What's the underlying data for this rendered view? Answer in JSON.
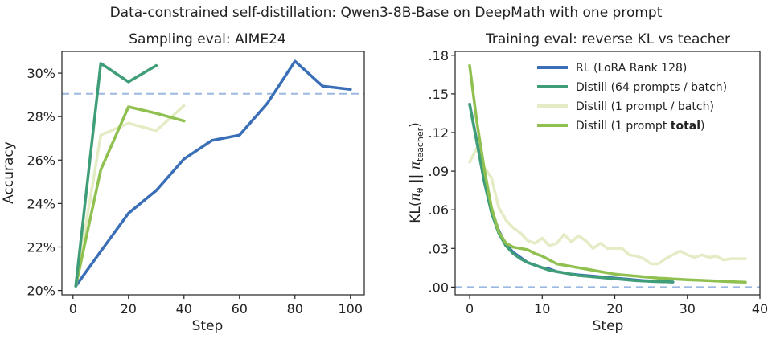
{
  "suptitle": "Data-constrained self-distillation: Qwen3-8B-Base on DeepMath with one prompt",
  "colors": {
    "rl": "#3a6fb8",
    "distill64": "#3f9e78",
    "distill1batch": "#e3ecc4",
    "distill1total": "#8fc050",
    "reference": "#9bb8e0",
    "axis": "#222222"
  },
  "chart_data": [
    {
      "type": "line",
      "title": "Sampling eval: AIME24",
      "xlabel": "Step",
      "ylabel": "Accuracy",
      "xlim": [
        -4,
        105
      ],
      "ylim": [
        19.8,
        31.0
      ],
      "xticks": [
        0,
        20,
        40,
        60,
        80,
        100
      ],
      "xtick_labels": [
        "0",
        "20",
        "40",
        "60",
        "80",
        "100"
      ],
      "yticks": [
        20,
        22,
        24,
        26,
        28,
        30
      ],
      "ytick_labels": [
        "20%",
        "22%",
        "24%",
        "26%",
        "28%",
        "30%"
      ],
      "reference_line": 29.05,
      "legend": "none",
      "grid": false,
      "series": [
        {
          "key": "rl",
          "x": [
            1,
            10,
            20,
            30,
            40,
            50,
            60,
            70,
            80,
            90,
            100
          ],
          "y": [
            20.2,
            21.8,
            23.55,
            24.6,
            26.05,
            26.9,
            27.15,
            28.6,
            30.55,
            29.4,
            29.25
          ]
        },
        {
          "key": "distill1batch",
          "x": [
            1,
            10,
            20,
            30,
            40
          ],
          "y": [
            20.2,
            27.15,
            27.7,
            27.35,
            28.5
          ]
        },
        {
          "key": "distill1total",
          "x": [
            1,
            10,
            20,
            30,
            40
          ],
          "y": [
            20.2,
            25.55,
            28.45,
            28.15,
            27.8
          ]
        },
        {
          "key": "distill64",
          "x": [
            1,
            10,
            20,
            30
          ],
          "y": [
            20.2,
            30.45,
            29.6,
            30.35
          ]
        }
      ]
    },
    {
      "type": "line",
      "title": "Training eval: reverse KL vs teacher",
      "xlabel": "Step",
      "ylabel": "KL(πθ || πteacher)",
      "xlim": [
        -2,
        40
      ],
      "ylim": [
        -0.006,
        0.183
      ],
      "xticks": [
        0,
        10,
        20,
        30,
        40
      ],
      "xtick_labels": [
        "0",
        "10",
        "20",
        "30",
        "40"
      ],
      "yticks": [
        0,
        0.03,
        0.06,
        0.09,
        0.12,
        0.15,
        0.18
      ],
      "ytick_labels": [
        ".00",
        ".03",
        ".06",
        ".09",
        ".12",
        ".15",
        ".18"
      ],
      "reference_line": 0.0,
      "legend": "top-right",
      "grid": false,
      "series": [
        {
          "key": "distill1batch",
          "name": "Distill (1 prompt / batch)",
          "x": [
            0,
            1,
            2,
            3,
            4,
            5,
            6,
            7,
            8,
            9,
            10,
            11,
            12,
            13,
            14,
            15,
            16,
            17,
            18,
            19,
            20,
            21,
            22,
            23,
            24,
            25,
            26,
            27,
            28,
            29,
            30,
            31,
            32,
            33,
            34,
            35,
            36,
            37,
            38
          ],
          "y": [
            0.097,
            0.108,
            0.093,
            0.085,
            0.062,
            0.052,
            0.046,
            0.042,
            0.036,
            0.034,
            0.038,
            0.032,
            0.034,
            0.041,
            0.035,
            0.04,
            0.036,
            0.03,
            0.034,
            0.03,
            0.03,
            0.03,
            0.025,
            0.024,
            0.022,
            0.018,
            0.018,
            0.022,
            0.025,
            0.028,
            0.025,
            0.023,
            0.025,
            0.023,
            0.024,
            0.021,
            0.022,
            0.022,
            0.022
          ]
        },
        {
          "key": "rl",
          "name": "RL (LoRA Rank 128)",
          "x": [
            0,
            1,
            2,
            3,
            4,
            5,
            6,
            7,
            8,
            9,
            10,
            11,
            12,
            13,
            14,
            15,
            16,
            17,
            18,
            19,
            20,
            21,
            22,
            23,
            24,
            25,
            26,
            27,
            28
          ],
          "y": [
            0.142,
            0.113,
            0.085,
            0.06,
            0.044,
            0.033,
            0.027,
            0.023,
            0.019,
            0.017,
            0.015,
            0.014,
            0.012,
            0.011,
            0.01,
            0.0095,
            0.009,
            0.0085,
            0.008,
            0.0075,
            0.007,
            0.0065,
            0.006,
            0.0055,
            0.005,
            0.0047,
            0.0045,
            0.0042,
            0.004
          ]
        },
        {
          "key": "distill64",
          "name": "Distill (64 prompts / batch)",
          "x": [
            0,
            1,
            2,
            3,
            4,
            5,
            6,
            7,
            8,
            9,
            10,
            11,
            12,
            13,
            14,
            15,
            16,
            17,
            18,
            19,
            20,
            21,
            22,
            23,
            24,
            25,
            26,
            27,
            28
          ],
          "y": [
            0.142,
            0.112,
            0.082,
            0.058,
            0.042,
            0.032,
            0.026,
            0.022,
            0.019,
            0.017,
            0.015,
            0.013,
            0.012,
            0.011,
            0.01,
            0.009,
            0.0085,
            0.008,
            0.0075,
            0.007,
            0.0065,
            0.006,
            0.0055,
            0.005,
            0.0047,
            0.0044,
            0.0042,
            0.0041,
            0.004
          ]
        },
        {
          "key": "distill1total",
          "name": "Distill (1 prompt total)",
          "x": [
            0,
            1,
            2,
            3,
            4,
            5,
            6,
            7,
            8,
            9,
            10,
            11,
            12,
            13,
            14,
            15,
            16,
            17,
            18,
            19,
            20,
            21,
            22,
            23,
            24,
            25,
            26,
            27,
            28,
            29,
            30,
            31,
            32,
            33,
            34,
            35,
            36,
            37,
            38
          ],
          "y": [
            0.172,
            0.128,
            0.092,
            0.062,
            0.043,
            0.034,
            0.031,
            0.03,
            0.029,
            0.026,
            0.024,
            0.021,
            0.018,
            0.017,
            0.016,
            0.015,
            0.014,
            0.013,
            0.012,
            0.011,
            0.01,
            0.0095,
            0.009,
            0.0085,
            0.008,
            0.0075,
            0.007,
            0.0067,
            0.0063,
            0.006,
            0.0057,
            0.0055,
            0.0052,
            0.005,
            0.0047,
            0.0045,
            0.0042,
            0.004,
            0.0038
          ]
        }
      ],
      "legend_entries": [
        {
          "key": "rl",
          "parts": [
            {
              "text": "RL (LoRA Rank 128)",
              "bold": false
            }
          ]
        },
        {
          "key": "distill64",
          "parts": [
            {
              "text": "Distill (64 prompts / batch)",
              "bold": false
            }
          ]
        },
        {
          "key": "distill1batch",
          "parts": [
            {
              "text": "Distill (1 prompt / batch)",
              "bold": false
            }
          ]
        },
        {
          "key": "distill1total",
          "parts": [
            {
              "text": "Distill (1 prompt ",
              "bold": false
            },
            {
              "text": "total",
              "bold": true
            },
            {
              "text": ")",
              "bold": false
            }
          ]
        }
      ]
    }
  ]
}
